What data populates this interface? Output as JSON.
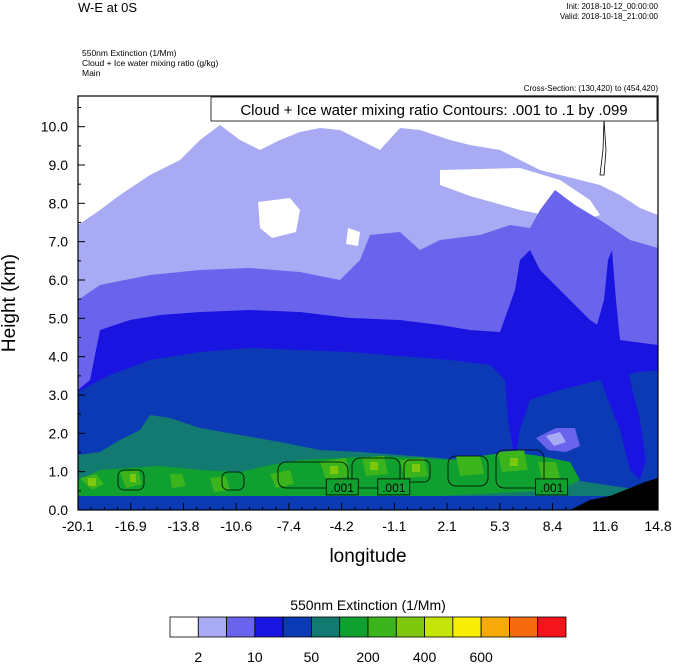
{
  "header": {
    "title": "W-E at 0S",
    "init": "Init: 2018-10-12_00:00:00",
    "valid": "Valid: 2018-10-18_21:00:00",
    "field1": "550nm Extinction   (1/Mm)",
    "field2": "Cloud + Ice water mixing ratio   (g/kg)",
    "field3": "Main",
    "cross_section": "Cross-Section: (130,420) to (454,420)"
  },
  "chart_data": {
    "type": "heatmap",
    "title": "Cloud + Ice water mixing ratio Contours: .001 to .1 by .099",
    "xlabel": "longitude",
    "ylabel": "Height (km)",
    "xlim": [
      -20.1,
      14.8
    ],
    "ylim": [
      0.0,
      10.8
    ],
    "x_ticks": [
      "-20.1",
      "-16.9",
      "-13.8",
      "-10.6",
      "-7.4",
      "-4.2",
      "-1.1",
      "2.1",
      "5.3",
      "8.4",
      "11.6",
      "14.8"
    ],
    "y_ticks": [
      "0.0",
      "1.0",
      "2.0",
      "3.0",
      "4.0",
      "5.0",
      "6.0",
      "7.0",
      "8.0",
      "9.0",
      "10.0"
    ],
    "y_tick_values": [
      0,
      1,
      2,
      3,
      4,
      5,
      6,
      7,
      8,
      9,
      10
    ],
    "contour_labels": [
      {
        "text": ".001",
        "lon": -4.2,
        "height": 0.55
      },
      {
        "text": ".001",
        "lon": -1.1,
        "height": 0.55
      },
      {
        "text": ".001",
        "lon": 8.4,
        "height": 0.55
      }
    ],
    "colorbar": {
      "title": "550nm Extinction  (1/Mm)",
      "colors": [
        "#ffffff",
        "#a8aaf4",
        "#6a64ec",
        "#1a14e0",
        "#0c3ab4",
        "#127a70",
        "#10a030",
        "#3cb41c",
        "#7ec80e",
        "#c4e40a",
        "#f6ee04",
        "#f8aa08",
        "#f86a0e",
        "#f6141c"
      ],
      "labels": [
        "2",
        "10",
        "50",
        "200",
        "400",
        "600"
      ]
    },
    "grid": false,
    "legend": "bottom"
  }
}
